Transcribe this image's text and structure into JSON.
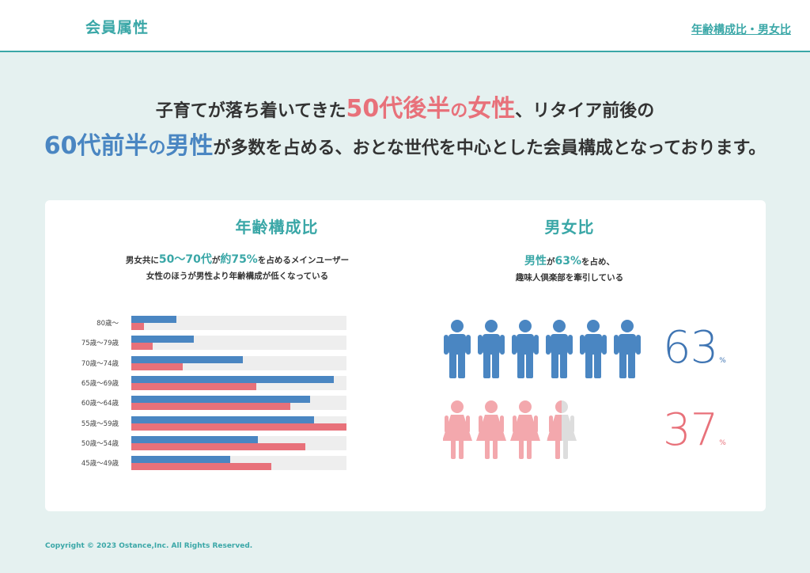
{
  "header": {
    "title": "会員属性",
    "link": "年齢構成比・男女比"
  },
  "headline": {
    "line1_a": "子育てが落ち着いてきた",
    "line1_f1": "50代後半",
    "line1_f2": "の",
    "line1_f3": "女性",
    "line1_b": "、リタイア前後の",
    "line2_m1": "60代前半",
    "line2_m2": "の",
    "line2_m3": "男性",
    "line2_b": "が多数を占める、おとな世代を中心とした会員構成となっております。"
  },
  "age_section": {
    "title": "年齢構成比",
    "desc1_a": "男女共に",
    "desc1_h1": "50〜70代",
    "desc1_b": "が",
    "desc1_h2": "約75%",
    "desc1_c": "を占めるメインユーザー",
    "desc2": "女性のほうが男性より年齢構成が低くなっている"
  },
  "gender_section": {
    "title": "男女比",
    "desc1_h": "男性",
    "desc1_a": "が",
    "desc1_h2": "63%",
    "desc1_b": "を占め、",
    "desc2": "趣味人倶楽部を牽引している",
    "male_pct": "63",
    "female_pct": "37",
    "unit": "%"
  },
  "colors": {
    "male": "#4a86c2",
    "female": "#e8717a",
    "female_light": "#f3a8ad",
    "accent": "#3aa7a7"
  },
  "chart_data": {
    "type": "bar",
    "orientation": "horizontal",
    "categories": [
      "80歳〜",
      "75歳〜79歳",
      "70歳〜74歳",
      "65歳〜69歳",
      "60歳〜64歳",
      "55歳〜59歳",
      "50歳〜54歳",
      "45歳〜49歳"
    ],
    "series": [
      {
        "name": "男性",
        "values": [
          21,
          29,
          52,
          94,
          83,
          85,
          59,
          46
        ]
      },
      {
        "name": "女性",
        "values": [
          6,
          10,
          24,
          58,
          74,
          100,
          81,
          65
        ]
      }
    ],
    "xlim": [
      0,
      100
    ]
  },
  "copyright": "Copyright © 2023 Ostance,Inc. All Rights Reserved."
}
